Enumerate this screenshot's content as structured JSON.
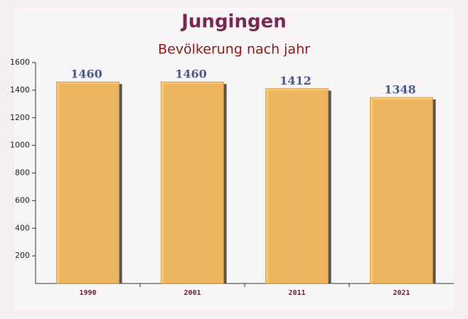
{
  "chart_data": {
    "type": "bar",
    "title": "Jungingen",
    "subtitle": "Bevölkerung nach jahr",
    "categories": [
      "1990",
      "2001",
      "2011",
      "2021"
    ],
    "values": [
      1460,
      1460,
      1412,
      1348
    ],
    "color": "#fdc05e",
    "ylim": [
      0,
      1600
    ],
    "yticks": [
      200,
      400,
      600,
      800,
      1000,
      1200,
      1400,
      1600
    ],
    "grid": false
  }
}
